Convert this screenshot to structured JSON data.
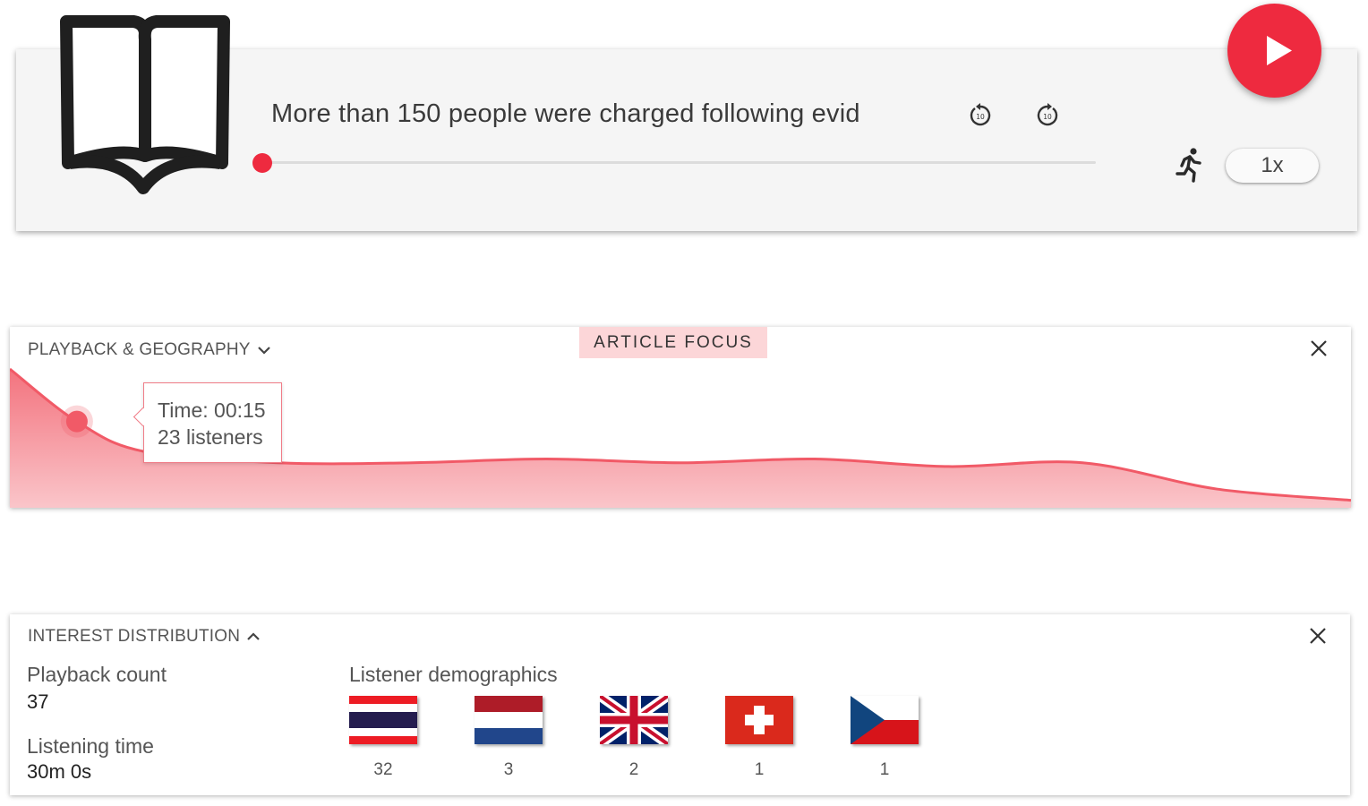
{
  "player": {
    "title": "More than 150 people were charged following evid",
    "speed": "1x",
    "progress": 0,
    "accent_color": "#ee2a3f",
    "icons": [
      "book-icon",
      "replay-10-icon",
      "forward-10-icon",
      "play-icon",
      "runner-icon"
    ]
  },
  "playback_panel": {
    "header": "PLAYBACK & GEOGRAPHY",
    "tag": "ARTICLE FOCUS",
    "tooltip": {
      "time": "Time: 00:15",
      "listeners": "23 listeners"
    },
    "chart_data": {
      "type": "area",
      "x": [
        0,
        15,
        30,
        60,
        90,
        120,
        150,
        180,
        210,
        240,
        270,
        300
      ],
      "values": [
        37,
        23,
        15,
        12,
        12,
        13,
        12,
        13,
        11,
        12,
        5,
        2
      ],
      "highlight_index": 1,
      "color": "#f15a67"
    }
  },
  "interest_panel": {
    "header": "INTEREST DISTRIBUTION",
    "playback_count_label": "Playback count",
    "playback_count": "37",
    "listening_time_label": "Listening time",
    "listening_time": "30m 0s",
    "demographics_label": "Listener demographics",
    "countries": [
      {
        "flag": "thailand-flag",
        "count": "32"
      },
      {
        "flag": "netherlands-flag",
        "count": "3"
      },
      {
        "flag": "uk-flag",
        "count": "2"
      },
      {
        "flag": "switzerland-flag",
        "count": "1"
      },
      {
        "flag": "czech-flag",
        "count": "1"
      }
    ]
  }
}
